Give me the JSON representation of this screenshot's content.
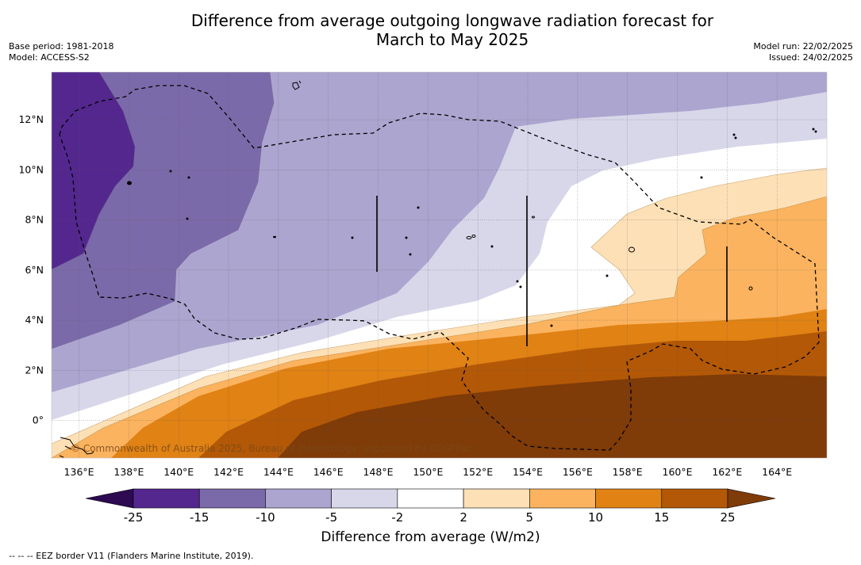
{
  "title_line1": "Difference from average outgoing longwave radiation forecast for",
  "title_line2": "March to May 2025",
  "base_period": "Base period: 1981-2018",
  "model": "Model: ACCESS-S2",
  "model_run": "Model run: 22/02/2025",
  "issued": "Issued: 24/02/2025",
  "map": {
    "copyright": "© Commonwealth of Australia 2025, Bureau of Meteorology; supported by COSPPac",
    "lon_labels": [
      "136°E",
      "138°E",
      "140°E",
      "142°E",
      "144°E",
      "146°E",
      "148°E",
      "150°E",
      "152°E",
      "154°E",
      "156°E",
      "158°E",
      "160°E",
      "162°E",
      "164°E"
    ],
    "lat_labels": [
      "12°N",
      "10°N",
      "8°N",
      "6°N",
      "4°N",
      "2°N",
      "0°"
    ],
    "lon_values": [
      136,
      138,
      140,
      142,
      144,
      146,
      148,
      150,
      152,
      154,
      156,
      158,
      160,
      162,
      164
    ],
    "lat_values": [
      12,
      10,
      8,
      6,
      4,
      2,
      0
    ],
    "lon_range": [
      134.9,
      166.0
    ],
    "lat_range": [
      -1.5,
      13.9
    ]
  },
  "colorbar": {
    "title": "Difference from average (W/m2)",
    "labels": [
      "-25",
      "-15",
      "-10",
      "-5",
      "-2",
      "2",
      "5",
      "10",
      "15",
      "25"
    ],
    "colors": {
      "below": "#2d0a52",
      "bins": [
        "#54278f",
        "#7b6aa9",
        "#aca5cf",
        "#d8d7ea",
        "#ffffff",
        "#fde0b6",
        "#fbb35f",
        "#e08214",
        "#b35806"
      ],
      "above": "#7f3b08"
    }
  },
  "footnote": "-- -- -- EEZ border V11 (Flanders Marine Institute, 2019)."
}
